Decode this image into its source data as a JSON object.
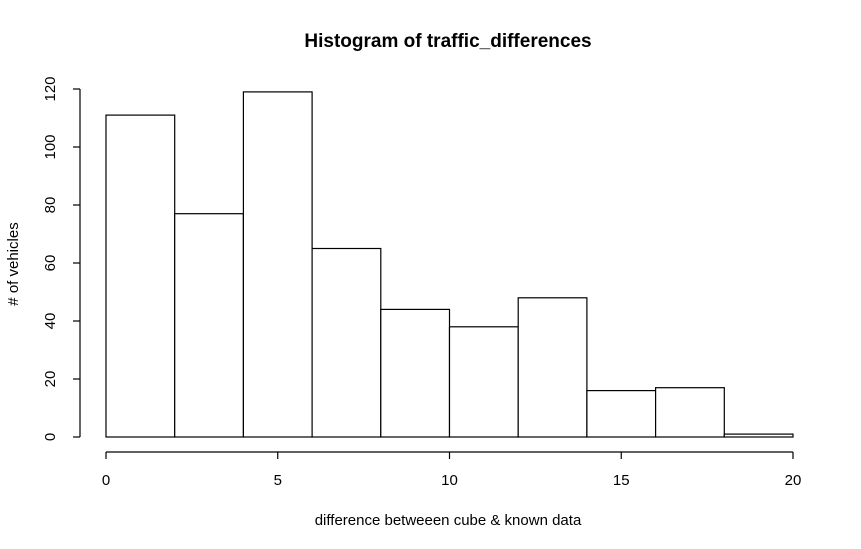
{
  "chart_data": {
    "type": "bar",
    "title": "Histogram of traffic_differences",
    "xlabel": "difference betweeen cube & known data",
    "ylabel": "# of vehicles",
    "bins": [
      {
        "from": 0,
        "to": 2,
        "count": 111
      },
      {
        "from": 2,
        "to": 4,
        "count": 77
      },
      {
        "from": 4,
        "to": 6,
        "count": 119
      },
      {
        "from": 6,
        "to": 8,
        "count": 65
      },
      {
        "from": 8,
        "to": 10,
        "count": 44
      },
      {
        "from": 10,
        "to": 12,
        "count": 38
      },
      {
        "from": 12,
        "to": 14,
        "count": 48
      },
      {
        "from": 14,
        "to": 16,
        "count": 16
      },
      {
        "from": 16,
        "to": 18,
        "count": 17
      },
      {
        "from": 18,
        "to": 20,
        "count": 1
      }
    ],
    "xlim": [
      0,
      20
    ],
    "ylim": [
      0,
      120
    ],
    "xticks": [
      0,
      5,
      10,
      15,
      20
    ],
    "yticks": [
      0,
      20,
      40,
      60,
      80,
      100,
      120
    ],
    "grid": false
  }
}
